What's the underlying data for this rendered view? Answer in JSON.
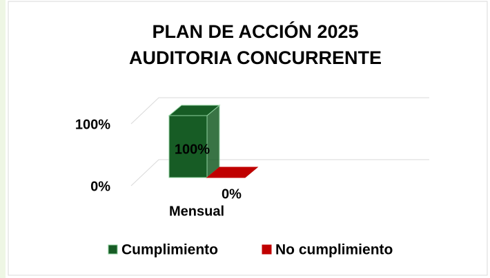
{
  "chart_data": {
    "type": "bar3d",
    "title": [
      "PLAN DE ACCIÓN 2025",
      "AUDITORIA CONCURRENTE"
    ],
    "categories": [
      "Mensual"
    ],
    "series": [
      {
        "name": "Cumplimiento",
        "color": "#175c25",
        "values": [
          100
        ],
        "value_labels": [
          "100%"
        ]
      },
      {
        "name": "No cumplimiento",
        "color": "#c00000",
        "values": [
          0
        ],
        "value_labels": [
          "0%"
        ]
      }
    ],
    "ylim": [
      0,
      100
    ],
    "yticks": [
      {
        "value": 0,
        "label": "0%"
      },
      {
        "value": 100,
        "label": "100%"
      }
    ],
    "grid": true,
    "legend": "bottom"
  }
}
